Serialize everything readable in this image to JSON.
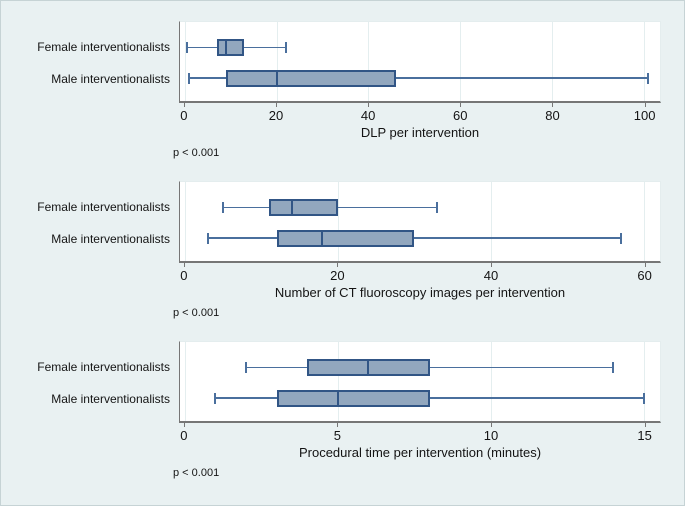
{
  "page": {
    "background_color": "#e9f1f2",
    "plot_background_color": "#ffffff"
  },
  "colors": {
    "box_fill": "#92a7be",
    "box_border": "#315585",
    "whisker": "#4a6f9d",
    "gridline": "#e4eeef",
    "axis": "#767676",
    "text": "#141414"
  },
  "chart_data": [
    {
      "type": "boxplot",
      "orientation": "horizontal",
      "title": "DLP per intervention",
      "p_value": "p < 0.001",
      "xlim": [
        0,
        100
      ],
      "xticks": [
        0,
        20,
        40,
        60,
        80,
        100
      ],
      "grid": true,
      "groups": [
        {
          "label": "Female interventionalists",
          "min": 0.5,
          "q1": 7,
          "median": 9,
          "q3": 13,
          "max": 22
        },
        {
          "label": "Male interventionalists",
          "min": 1,
          "q1": 9,
          "median": 20,
          "q3": 46,
          "max": 101
        }
      ]
    },
    {
      "type": "boxplot",
      "orientation": "horizontal",
      "title": "Number of CT fluoroscopy images per intervention",
      "p_value": "p < 0.001",
      "xlim": [
        0,
        60
      ],
      "xticks": [
        0,
        20,
        40,
        60
      ],
      "grid": true,
      "groups": [
        {
          "label": "Female interventionalists",
          "min": 5,
          "q1": 11,
          "median": 14,
          "q3": 20,
          "max": 33
        },
        {
          "label": "Male interventionalists",
          "min": 3,
          "q1": 12,
          "median": 18,
          "q3": 30,
          "max": 57
        }
      ]
    },
    {
      "type": "boxplot",
      "orientation": "horizontal",
      "title": "Procedural time per intervention (minutes)",
      "p_value": "p < 0.001",
      "xlim": [
        0,
        15
      ],
      "xticks": [
        0,
        5,
        10,
        15
      ],
      "grid": true,
      "groups": [
        {
          "label": "Female interventionalists",
          "min": 2,
          "q1": 4,
          "median": 6,
          "q3": 8,
          "max": 14
        },
        {
          "label": "Male interventionalists",
          "min": 1,
          "q1": 3,
          "median": 5,
          "q3": 8,
          "max": 15
        }
      ]
    }
  ]
}
